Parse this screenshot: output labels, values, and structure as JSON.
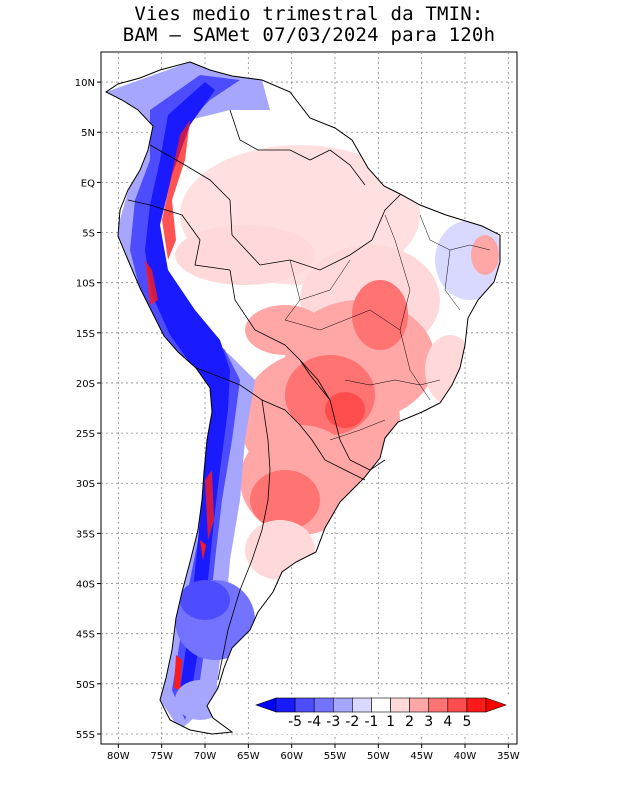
{
  "title": {
    "line1": "Vies medio trimestral da TMIN:",
    "line2": "BAM – SAMet 07/03/2024  para 120h"
  },
  "map": {
    "region": "South America",
    "lon_range": [
      -82,
      -34
    ],
    "lat_range": [
      -56,
      13
    ],
    "grid_lines": true,
    "x_ticks": [
      "80W",
      "75W",
      "70W",
      "65W",
      "60W",
      "55W",
      "50W",
      "45W",
      "40W",
      "35W"
    ],
    "x_tick_values": [
      -80,
      -75,
      -70,
      -65,
      -60,
      -55,
      -50,
      -45,
      -40,
      -35
    ],
    "y_ticks": [
      "10N",
      "5N",
      "EQ",
      "5S",
      "10S",
      "15S",
      "20S",
      "25S",
      "30S",
      "35S",
      "40S",
      "45S",
      "50S",
      "55S"
    ],
    "y_tick_values": [
      10,
      5,
      0,
      -5,
      -10,
      -15,
      -20,
      -25,
      -30,
      -35,
      -40,
      -45,
      -50,
      -55
    ]
  },
  "colorbar": {
    "labels": [
      "-5",
      "-4",
      "-3",
      "-2",
      "-1",
      "1",
      "2",
      "3",
      "4",
      "5"
    ],
    "colors": [
      "#1a1aff",
      "#4d4dff",
      "#7373ff",
      "#a6a6ff",
      "#d9d9ff",
      "#ffffff",
      "#ffd9d9",
      "#ffa6a6",
      "#ff7373",
      "#ff4d4d",
      "#ff1a1a"
    ],
    "arrow_left": "#0000ff",
    "arrow_right": "#ff0000"
  },
  "colors": {
    "land_outline": "#000000",
    "ocean": "#ffffff"
  }
}
